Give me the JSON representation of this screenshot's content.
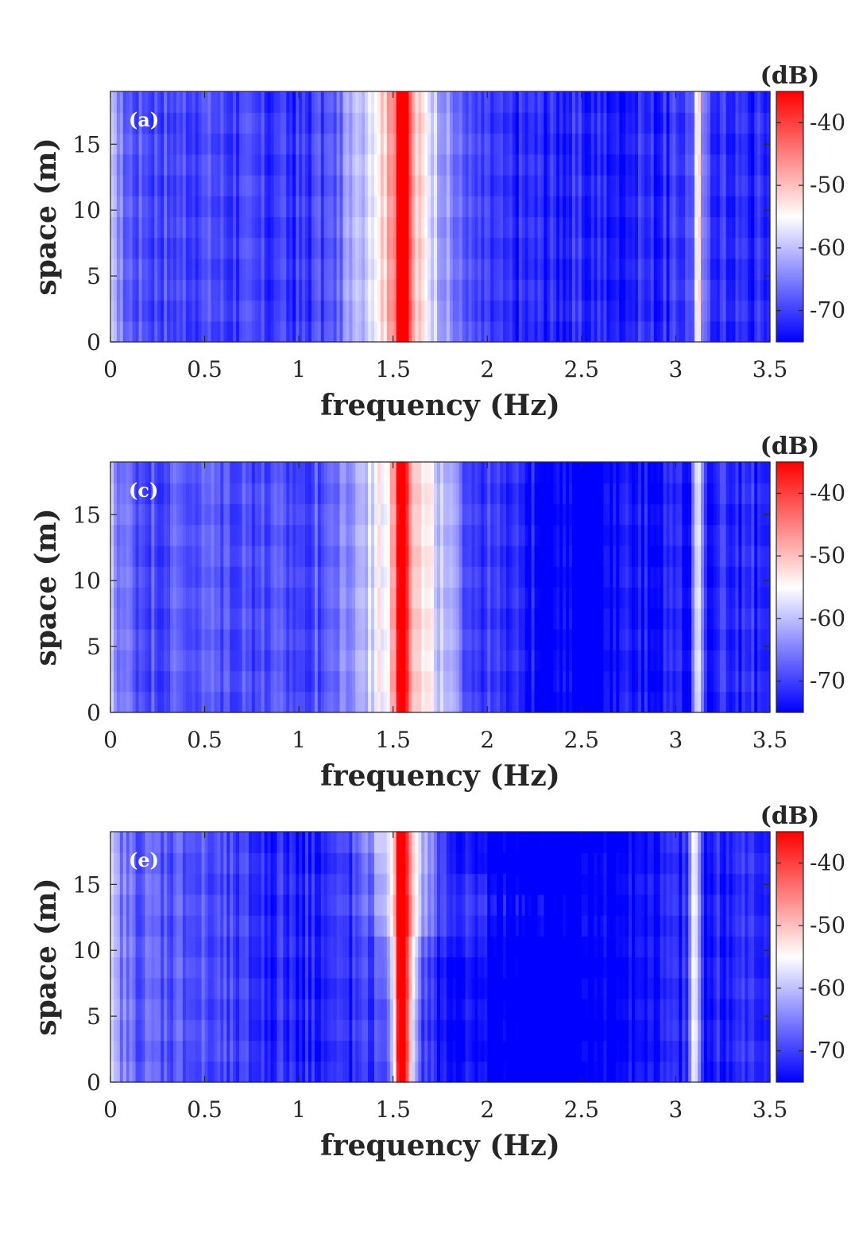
{
  "chart_data": [
    {
      "type": "heatmap",
      "panel_label": "(a)",
      "xlabel": "frequency (Hz)",
      "ylabel": "space (m)",
      "xlim": [
        0,
        3.5
      ],
      "ylim": [
        0,
        19
      ],
      "xticks": [
        0,
        0.5,
        1,
        1.5,
        2,
        2.5,
        3,
        3.5
      ],
      "xtick_labels": [
        "0",
        "0.5",
        "1",
        "1.5",
        "2",
        "2.5",
        "3",
        "3.5"
      ],
      "yticks": [
        0,
        5,
        10,
        15
      ],
      "ytick_labels": [
        "0",
        "5",
        "10",
        "15"
      ],
      "colorbar": {
        "unit": "(dB)",
        "range": [
          -75,
          -35
        ],
        "ticks": [
          -40,
          -50,
          -60,
          -70
        ],
        "tick_labels": [
          "-40",
          "-50",
          "-60",
          "-70"
        ],
        "colormap": [
          "#0000ff",
          "#ffffff",
          "#ff0000"
        ]
      },
      "features": [
        {
          "freq_hz": 1.55,
          "level_db": -36,
          "description_free": true
        },
        {
          "freq_hz": 3.12,
          "level_db": -60
        }
      ]
    },
    {
      "type": "heatmap",
      "panel_label": "(c)",
      "xlabel": "frequency (Hz)",
      "ylabel": "space (m)",
      "xlim": [
        0,
        3.5
      ],
      "ylim": [
        0,
        19
      ],
      "xticks": [
        0,
        0.5,
        1,
        1.5,
        2,
        2.5,
        3,
        3.5
      ],
      "xtick_labels": [
        "0",
        "0.5",
        "1",
        "1.5",
        "2",
        "2.5",
        "3",
        "3.5"
      ],
      "yticks": [
        0,
        5,
        10,
        15
      ],
      "ytick_labels": [
        "0",
        "5",
        "10",
        "15"
      ],
      "colorbar": {
        "unit": "(dB)",
        "range": [
          -75,
          -35
        ],
        "ticks": [
          -40,
          -50,
          -60,
          -70
        ],
        "tick_labels": [
          "-40",
          "-50",
          "-60",
          "-70"
        ],
        "colormap": [
          "#0000ff",
          "#ffffff",
          "#ff0000"
        ]
      },
      "features": [
        {
          "freq_hz": 1.55,
          "level_db": -36
        },
        {
          "freq_hz": 3.12,
          "level_db": -57
        }
      ]
    },
    {
      "type": "heatmap",
      "panel_label": "(e)",
      "xlabel": "frequency (Hz)",
      "ylabel": "space (m)",
      "xlim": [
        0,
        3.5
      ],
      "ylim": [
        0,
        19
      ],
      "xticks": [
        0,
        0.5,
        1,
        1.5,
        2,
        2.5,
        3,
        3.5
      ],
      "xtick_labels": [
        "0",
        "0.5",
        "1",
        "1.5",
        "2",
        "2.5",
        "3",
        "3.5"
      ],
      "yticks": [
        0,
        5,
        10,
        15
      ],
      "ytick_labels": [
        "0",
        "5",
        "10",
        "15"
      ],
      "colorbar": {
        "unit": "(dB)",
        "range": [
          -75,
          -35
        ],
        "ticks": [
          -40,
          -50,
          -60,
          -70
        ],
        "tick_labels": [
          "-40",
          "-50",
          "-60",
          "-70"
        ],
        "colormap": [
          "#0000ff",
          "#ffffff",
          "#ff0000"
        ]
      },
      "features": [
        {
          "freq_hz": 1.55,
          "level_db": -38
        },
        {
          "freq_hz": 3.1,
          "level_db": -50
        }
      ]
    }
  ]
}
